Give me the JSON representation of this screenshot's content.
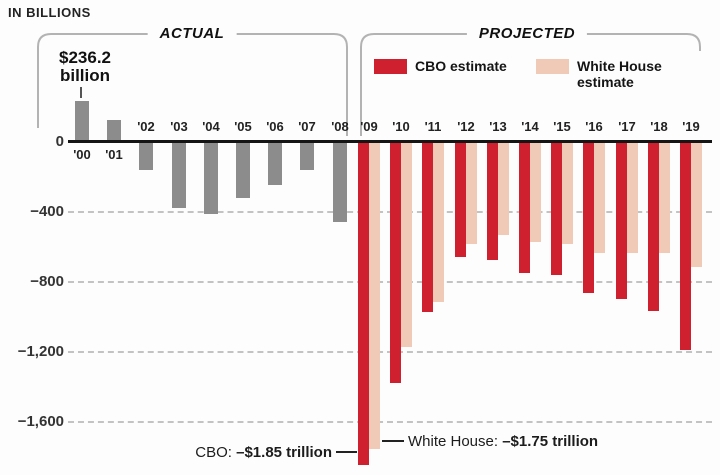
{
  "header": {
    "units_label": "IN BILLIONS"
  },
  "sections": {
    "actual_label": "ACTUAL",
    "projected_label": "PROJECTED"
  },
  "legend": {
    "cbo_label": "CBO estimate",
    "white_house_label": "White House estimate"
  },
  "annotations": {
    "surplus_2000": {
      "line1": "$236.2",
      "line2": "billion"
    },
    "cbo_2009": {
      "label": "CBO:",
      "value": "–$1.85 trillion"
    },
    "white_house_2009": {
      "label": "White House:",
      "value": "–$1.75 trillion"
    }
  },
  "colors": {
    "cbo_red": "#cf2030",
    "white_house_pink": "#f0c9b7",
    "actual_gray": "#8c8c8c",
    "bracket_gray": "#b3b3b3",
    "gridline_gray": "#c3c3c3"
  },
  "chart_data": {
    "type": "bar",
    "title": "IN BILLIONS",
    "xlabel": "",
    "ylabel": "",
    "ylim": [
      -1900,
      300
    ],
    "grid": "horizontal dashed",
    "legend_position": "top",
    "yticks": [
      0,
      -400,
      -800,
      -1200,
      -1600
    ],
    "ytick_labels": [
      "0",
      "−400",
      "−800",
      "−1,200",
      "−1,600"
    ],
    "groups": [
      {
        "name": "ACTUAL",
        "style": "single",
        "color_key": "actual_gray",
        "categories": [
          "'00",
          "'01",
          "'02",
          "'03",
          "'04",
          "'05",
          "'06",
          "'07",
          "'08"
        ],
        "values": [
          236.2,
          128.2,
          -157.8,
          -377.6,
          -412.7,
          -318.3,
          -248.2,
          -160.7,
          -458.6
        ]
      },
      {
        "name": "PROJECTED",
        "style": "grouped",
        "categories": [
          "'09",
          "'10",
          "'11",
          "'12",
          "'13",
          "'14",
          "'15",
          "'16",
          "'17",
          "'18",
          "'19"
        ],
        "series": [
          {
            "name": "CBO estimate",
            "color_key": "cbo_red",
            "values": [
              -1845,
              -1379,
              -970,
              -658,
              -672,
              -749,
              -762,
              -865,
              -895,
              -965,
              -1189
            ]
          },
          {
            "name": "White House estimate",
            "color_key": "white_house_pink",
            "values": [
              -1752,
              -1171,
              -912,
              -581,
              -533,
              -570,
              -583,
              -637,
              -636,
              -634,
              -712
            ]
          }
        ]
      }
    ]
  }
}
